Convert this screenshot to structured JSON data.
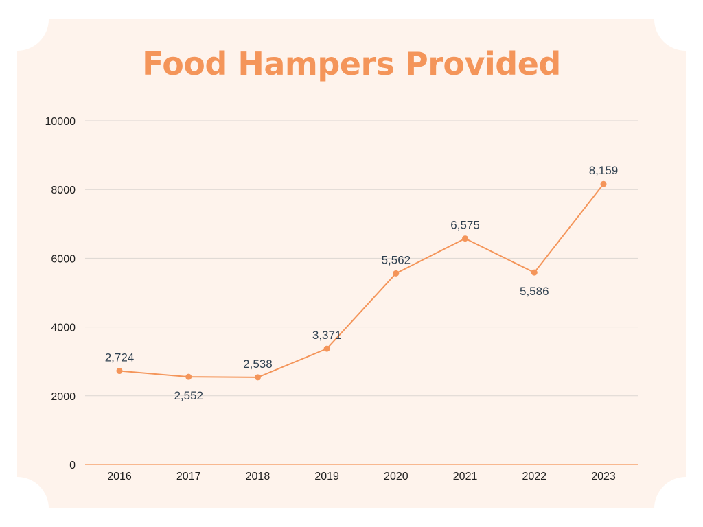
{
  "chart_data": {
    "type": "line",
    "title": "Food Hampers Provided",
    "xlabel": "",
    "ylabel": "",
    "x": [
      "2016",
      "2017",
      "2018",
      "2019",
      "2020",
      "2021",
      "2022",
      "2023"
    ],
    "series": [
      {
        "values": [
          2724,
          2552,
          2538,
          3371,
          5562,
          6575,
          5586,
          8159
        ],
        "data_labels": [
          "2,724",
          "2,552",
          "2,538",
          "3,371",
          "5,562",
          "6,575",
          "5,586",
          "8,159"
        ],
        "data_label_positions": [
          "above",
          "below",
          "above",
          "above",
          "above",
          "above",
          "below",
          "above"
        ]
      }
    ],
    "ylim": [
      0,
      10000
    ],
    "yticks": [
      0,
      2000,
      4000,
      6000,
      8000,
      10000
    ],
    "ytick_labels": [
      "0",
      "2000",
      "4000",
      "6000",
      "8000",
      "10000"
    ],
    "grid": true,
    "legend": "none",
    "colors": {
      "line": "#f4955a",
      "title": "#f4955a",
      "background": "#fef3ec",
      "gridline": "#dcd6d2",
      "data_label": "#2f4050"
    }
  }
}
